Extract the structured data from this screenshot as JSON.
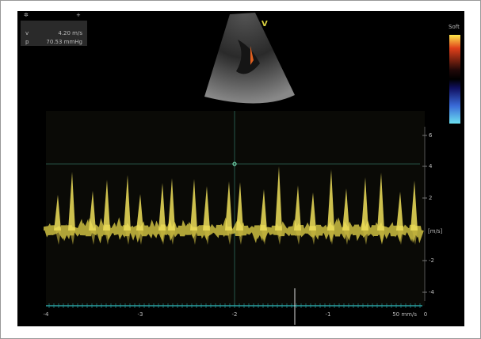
{
  "measurements": [
    {
      "label": "v",
      "value": "4.20 m/s"
    },
    {
      "label": "p",
      "value": "70.53 mmHg"
    }
  ],
  "view_label": "V",
  "colorbar_label": "Soft",
  "velocity_axis": {
    "unit": "[m/s]",
    "ticks": [
      6,
      4,
      2,
      -2,
      -4
    ]
  },
  "time_axis": {
    "ticks": [
      -4,
      -3,
      -2,
      -1,
      0
    ],
    "sweep_speed": "50 mm/s"
  }
}
